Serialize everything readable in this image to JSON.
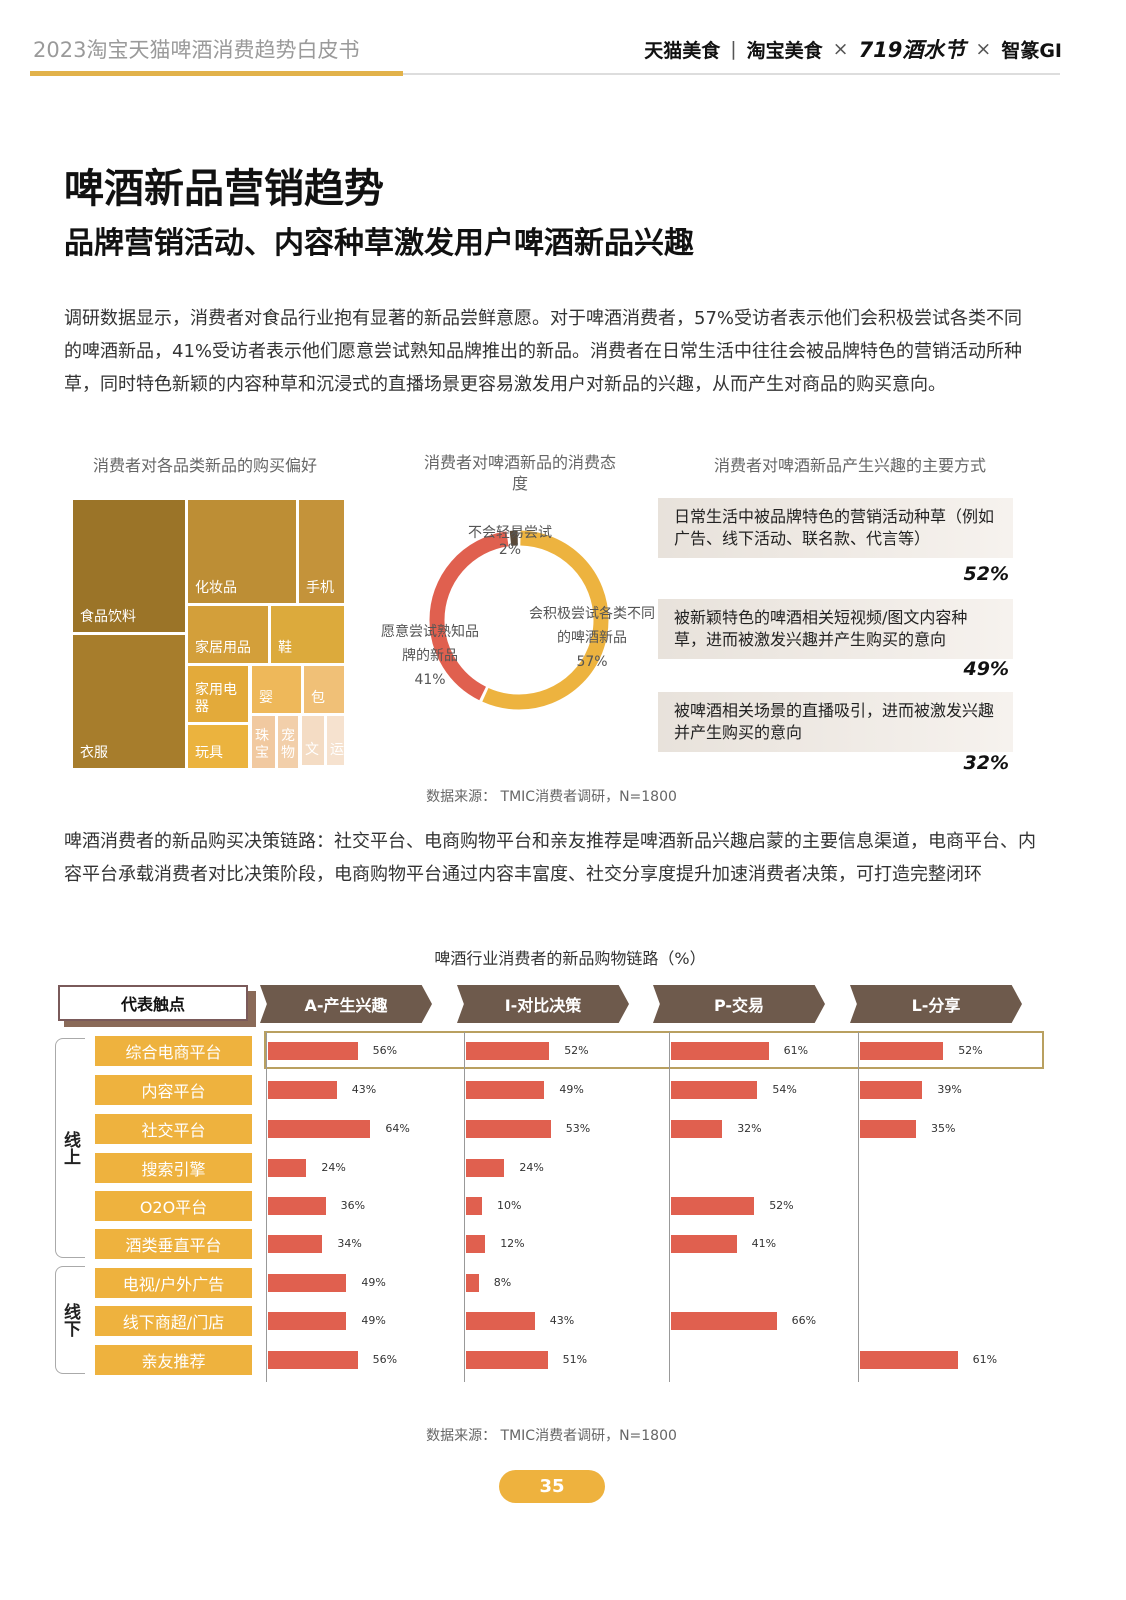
{
  "header": {
    "title": "2023淘宝天猫啤酒消费趋势白皮书",
    "logos": [
      "天猫美食",
      "淘宝美食",
      "719酒水节",
      "智篆GI"
    ],
    "separator": "×",
    "divider": "|"
  },
  "heading": {
    "title": "啤酒新品营销趋势",
    "subtitle": "品牌营销活动、内容种草激发用户啤酒新品兴趣"
  },
  "intro": "调研数据显示，消费者对食品行业抱有显著的新品尝鲜意愿。对于啤酒消费者，57%受访者表示他们会积极尝试各类不同的啤酒新品，41%受访者表示他们愿意尝试熟知品牌推出的新品。消费者在日常生活中往往会被品牌特色的营销活动所种草，同时特色新颖的内容种草和沉浸式的直播场景更容易激发用户对新品的兴趣，从而产生对商品的购买意向。",
  "chart_data": [
    {
      "type": "treemap",
      "title": "消费者对各品类新品的购买偏好",
      "categories": [
        "食品饮料",
        "衣服",
        "化妆品",
        "手机",
        "家居用品",
        "鞋",
        "家用电器",
        "玩具",
        "婴",
        "包",
        "珠宝",
        "宠物",
        "文",
        "运"
      ]
    },
    {
      "type": "pie",
      "title": "消费者对啤酒新品的消费态度",
      "slices": [
        {
          "label": "会积极尝试各类不同的啤酒新品",
          "value": 57,
          "display": "57%",
          "color": "#edb33f"
        },
        {
          "label": "愿意尝试熟知品牌的新品",
          "value": 41,
          "display": "41%",
          "color": "#e0604f"
        },
        {
          "label": "不会轻易尝试",
          "value": 2,
          "display": "2%",
          "color": "#5a4a3a"
        }
      ]
    },
    {
      "type": "bar",
      "title": "消费者对啤酒新品产生兴趣的主要方式",
      "items": [
        {
          "label": "日常生活中被品牌特色的营销活动种草（例如广告、线下活动、联名款、代言等）",
          "value": 52,
          "display": "52%"
        },
        {
          "label": "被新颖特色的啤酒相关短视频/图文内容种草，进而被激发兴趣并产生购买的意向",
          "value": 49,
          "display": "49%"
        },
        {
          "label": "被啤酒相关场景的直播吸引，进而被激发兴趣并产生购买的意向",
          "value": 32,
          "display": "32%"
        }
      ]
    },
    {
      "type": "bar",
      "title": "啤酒行业消费者的新品购物链路（%）",
      "corner": "代表触点",
      "groups": [
        {
          "name": "线上",
          "count": 6
        },
        {
          "name": "线下",
          "count": 3
        }
      ],
      "categories": [
        "综合电商平台",
        "内容平台",
        "社交平台",
        "搜索引擎",
        "O2O平台",
        "酒类垂直平台",
        "电视/户外广告",
        "线下商超/门店",
        "亲友推荐"
      ],
      "series": [
        {
          "name": "A-产生兴趣",
          "values": [
            56,
            43,
            64,
            24,
            36,
            34,
            49,
            49,
            56
          ]
        },
        {
          "name": "I-对比决策",
          "values": [
            52,
            49,
            53,
            24,
            10,
            12,
            8,
            43,
            51
          ]
        },
        {
          "name": "P-交易",
          "values": [
            61,
            54,
            32,
            null,
            52,
            41,
            null,
            66,
            null
          ]
        },
        {
          "name": "L-分享",
          "values": [
            52,
            39,
            35,
            null,
            null,
            null,
            null,
            null,
            61
          ]
        }
      ],
      "highlight_row": "综合电商平台"
    }
  ],
  "source1": "数据来源：  TMIC消费者调研，N=1800",
  "para2": "啤酒消费者的新品购买决策链路：社交平台、电商购物平台和亲友推荐是啤酒新品兴趣启蒙的主要信息渠道，电商平台、内容平台承载消费者对比决策阶段，电商购物平台通过内容丰富度、社交分享度提升加速消费者决策，可打造完整闭环",
  "source2": "数据来源：  TMIC消费者调研，N=1800",
  "page_number": "35",
  "colors": {
    "accent": "#eeb23e",
    "bar": "#e0604f",
    "stage": "#6e5a4c"
  }
}
